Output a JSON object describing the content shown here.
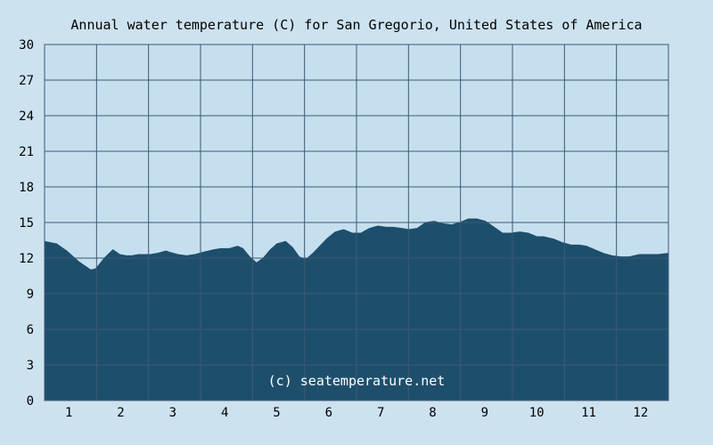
{
  "colors": {
    "background": "#cde2ef",
    "plot_background": "#c6dfef",
    "area_fill": "#1d4f6c",
    "grid": "#3a5a73",
    "text": "#000000",
    "watermark": "#ffffff"
  },
  "watermark": "(c) seatemperature.net",
  "chart_data": {
    "type": "area",
    "title": "Annual water temperature (C) for San Gregorio, United States of America",
    "xlabel": "",
    "ylabel": "",
    "x_range": [
      1,
      366
    ],
    "ylim": [
      0,
      30
    ],
    "yticks": [
      0,
      3,
      6,
      9,
      12,
      15,
      18,
      21,
      24,
      27,
      30
    ],
    "xtick_labels": [
      "1",
      "2",
      "3",
      "4",
      "5",
      "6",
      "7",
      "8",
      "9",
      "10",
      "11",
      "12"
    ],
    "grid": true,
    "legend": "none",
    "x": [
      1,
      8,
      14,
      21,
      28,
      31,
      36,
      41,
      45,
      49,
      52,
      56,
      59,
      63,
      67,
      72,
      74,
      79,
      84,
      89,
      94,
      100,
      104,
      109,
      114,
      117,
      121,
      125,
      129,
      133,
      137,
      142,
      146,
      150,
      154,
      158,
      162,
      166,
      171,
      176,
      181,
      186,
      191,
      196,
      201,
      205,
      210,
      214,
      219,
      224,
      229,
      234,
      239,
      244,
      249,
      254,
      259,
      264,
      269,
      274,
      279,
      284,
      289,
      293,
      299,
      304,
      309,
      314,
      318,
      323,
      328,
      333,
      338,
      343,
      349,
      354,
      360,
      366
    ],
    "y": [
      13.4,
      13.2,
      12.6,
      11.7,
      11.0,
      11.1,
      12.0,
      12.7,
      12.3,
      12.2,
      12.2,
      12.3,
      12.3,
      12.3,
      12.4,
      12.6,
      12.5,
      12.3,
      12.2,
      12.3,
      12.5,
      12.7,
      12.8,
      12.8,
      13.0,
      12.8,
      12.1,
      11.6,
      12.0,
      12.7,
      13.2,
      13.4,
      12.9,
      12.1,
      11.9,
      12.4,
      13.0,
      13.6,
      14.2,
      14.4,
      14.1,
      14.1,
      14.5,
      14.7,
      14.6,
      14.6,
      14.5,
      14.4,
      14.5,
      15.0,
      15.1,
      14.9,
      14.8,
      15.0,
      15.3,
      15.3,
      15.1,
      14.6,
      14.1,
      14.1,
      14.2,
      14.1,
      13.8,
      13.8,
      13.6,
      13.3,
      13.1,
      13.1,
      13.0,
      12.7,
      12.4,
      12.2,
      12.1,
      12.1,
      12.3,
      12.3,
      12.3,
      12.4
    ]
  }
}
